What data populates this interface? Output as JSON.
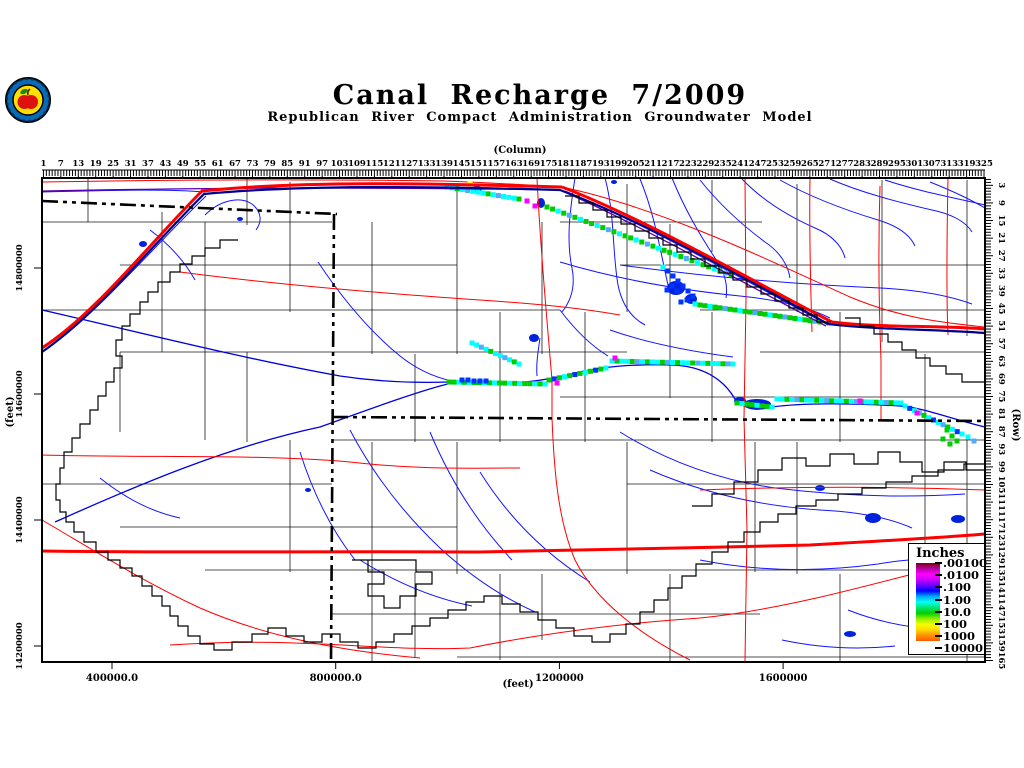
{
  "header": {
    "title": "Canal Recharge 7/2009",
    "subtitle": "Republican River Compact Administration Groundwater Model"
  },
  "logo": {
    "name": "rrca-apple-seal",
    "ring_color": "#0a6ab4",
    "inner_color": "#ffe000",
    "apple_color": "#dd1111",
    "leaf_color": "#1a8a1a"
  },
  "axes": {
    "column": {
      "label": "(Column)",
      "ticks": [
        1,
        7,
        13,
        19,
        25,
        31,
        37,
        43,
        49,
        55,
        61,
        67,
        73,
        79,
        85,
        91,
        97,
        103,
        109,
        115,
        121,
        127,
        133,
        139,
        145,
        151,
        157,
        163,
        169,
        175,
        181,
        187,
        193,
        199,
        205,
        211,
        217,
        223,
        229,
        235,
        241,
        247,
        253,
        259,
        265,
        271,
        277,
        283,
        289,
        295,
        301,
        307,
        313,
        319,
        325
      ]
    },
    "row": {
      "label": "(Row)",
      "ticks": [
        3,
        9,
        15,
        21,
        27,
        33,
        39,
        45,
        51,
        57,
        63,
        69,
        75,
        81,
        87,
        93,
        99,
        105,
        111,
        117,
        123,
        129,
        135,
        141,
        147,
        153,
        159,
        165
      ]
    },
    "x_feet": {
      "label": "(feet)",
      "ticks": [
        "400000.0",
        "800000.0",
        "1200000",
        "1600000"
      ]
    },
    "y_feet": {
      "label": "(feet)",
      "ticks": [
        "14800000",
        "14600000",
        "14400000",
        "14200000"
      ]
    }
  },
  "legend": {
    "title": "Inches",
    "labels": [
      ".00100",
      ".0100",
      ".100",
      "1.00",
      "10.0",
      "100",
      "1000",
      "10000"
    ],
    "gradient": [
      "#7a0010",
      "#b4009e",
      "#ff00ff",
      "#cc00ff",
      "#6a00ff",
      "#0000ff",
      "#00a8ff",
      "#00fff2",
      "#00e673",
      "#00d000",
      "#8ef000",
      "#f4ff00",
      "#ffd800",
      "#ff9000",
      "#ff5a00"
    ]
  },
  "colors": {
    "stream": "#1515ff",
    "river": "#0000e0",
    "road": "#ff0000",
    "highway": "#ff0000",
    "purpleline": "#5a00aa",
    "navyline": "#000090",
    "county": "#000000",
    "border": "#000000",
    "cyan": "#00ffff",
    "green": "#00cc00",
    "cellblue": "#0033ff",
    "magenta": "#ff00ff",
    "yellow": "#ffff00",
    "sky": "#55aaff",
    "lake": "#0022dd"
  }
}
